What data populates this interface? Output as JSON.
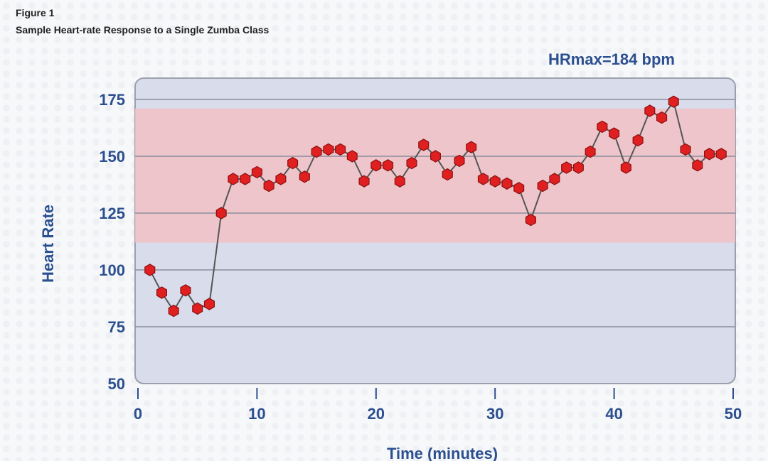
{
  "figure": {
    "label": "Figure 1",
    "title": "Sample Heart-rate Response to a Single Zumba Class"
  },
  "chart_data": {
    "type": "scatter",
    "annotation": "HRmax=184 bpm",
    "xlabel": "Time (minutes)",
    "ylabel": "Heart Rate",
    "xlim": [
      0,
      50
    ],
    "ylim": [
      50,
      180
    ],
    "xticks": [
      0,
      10,
      20,
      30,
      40,
      50
    ],
    "yticks": [
      50,
      75,
      100,
      125,
      150,
      175
    ],
    "target_zone": [
      112,
      171
    ],
    "grid": true,
    "connected": true,
    "colors": {
      "marker": "#e02020",
      "zone": "#f2c1c4",
      "plot_bg": "#d8dceb",
      "axis_text": "#2b4f8f",
      "line": "#555555"
    },
    "x": [
      1,
      2,
      3,
      4,
      5,
      6,
      7,
      8,
      9,
      10,
      11,
      12,
      13,
      14,
      15,
      16,
      17,
      18,
      19,
      20,
      21,
      22,
      23,
      24,
      25,
      26,
      27,
      28,
      29,
      30,
      31,
      32,
      33,
      34,
      35,
      36,
      37,
      38,
      39,
      40,
      41,
      42,
      43,
      44,
      45,
      46,
      47,
      48,
      49
    ],
    "y": [
      100,
      90,
      82,
      91,
      83,
      85,
      125,
      140,
      140,
      143,
      137,
      140,
      147,
      141,
      152,
      153,
      153,
      150,
      139,
      146,
      146,
      139,
      147,
      155,
      150,
      142,
      148,
      154,
      140,
      139,
      138,
      136,
      122,
      137,
      140,
      145,
      145,
      152,
      163,
      160,
      145,
      157,
      170,
      167,
      174,
      153,
      146,
      151,
      151
    ]
  }
}
